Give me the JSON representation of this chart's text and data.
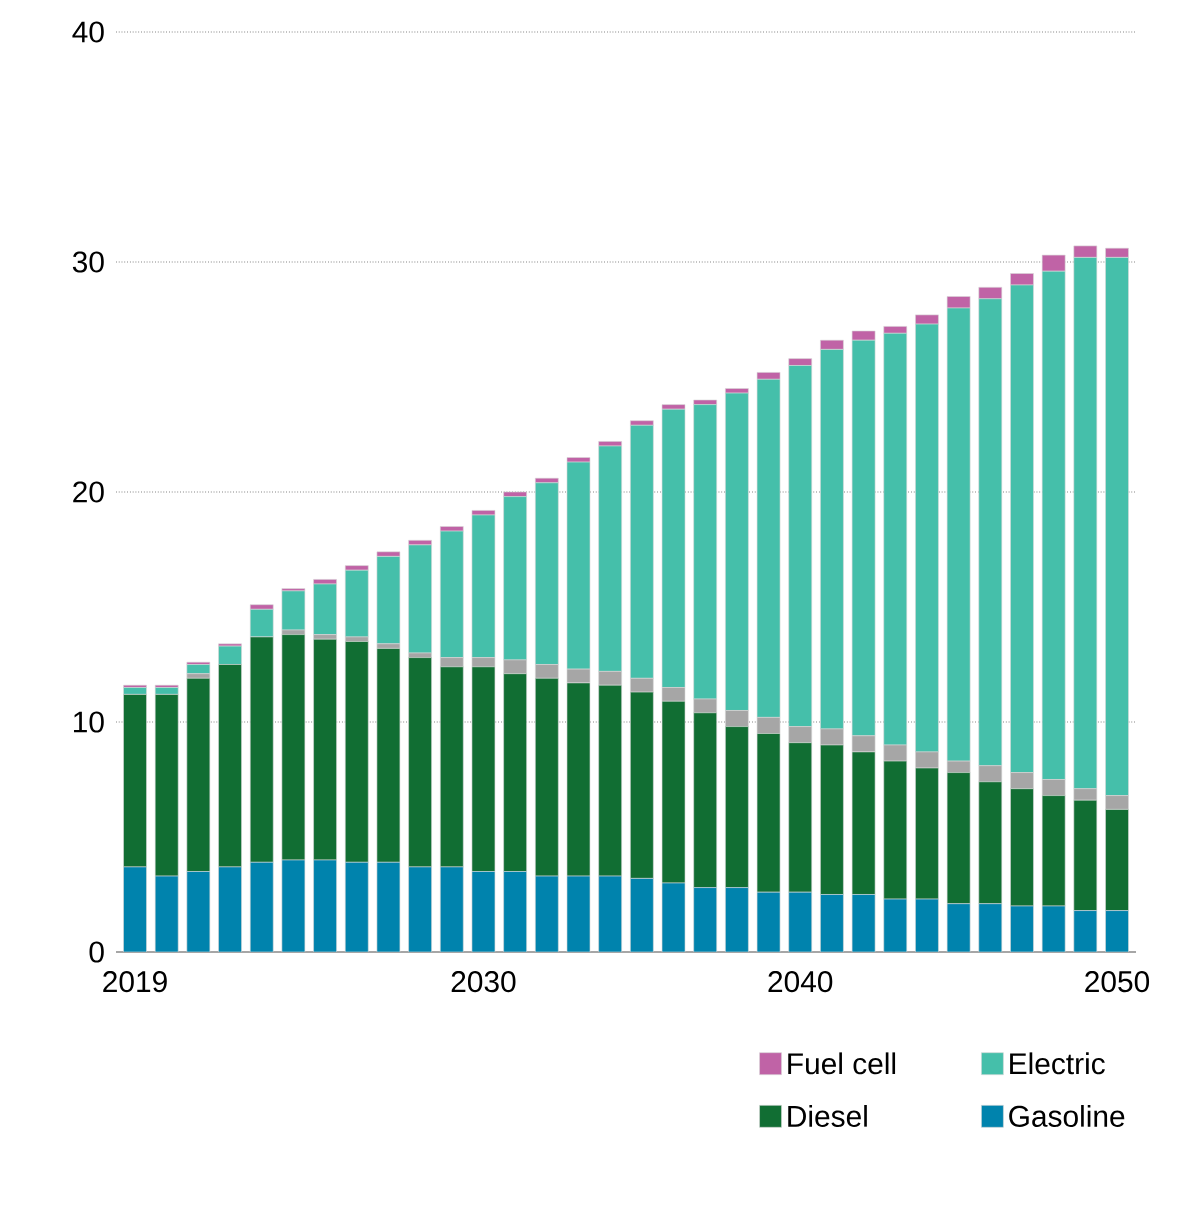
{
  "chart_data": {
    "type": "bar",
    "stacked": true,
    "categories": [
      "2019",
      null,
      null,
      null,
      null,
      null,
      null,
      null,
      null,
      null,
      null,
      "2030",
      null,
      null,
      null,
      null,
      null,
      null,
      null,
      null,
      null,
      "2040",
      null,
      null,
      null,
      null,
      null,
      null,
      null,
      null,
      null,
      "2050"
    ],
    "series": [
      {
        "name": "Gasoline",
        "color": "#0083ad",
        "values": [
          3.7,
          3.3,
          3.5,
          3.7,
          3.9,
          4.0,
          4.0,
          3.9,
          3.9,
          3.7,
          3.7,
          3.5,
          3.5,
          3.3,
          3.3,
          3.3,
          3.2,
          3.0,
          2.8,
          2.8,
          2.6,
          2.6,
          2.5,
          2.5,
          2.3,
          2.3,
          2.1,
          2.1,
          2.0,
          2.0,
          1.8,
          1.8
        ]
      },
      {
        "name": "Diesel",
        "color": "#116e33",
        "values": [
          7.5,
          7.9,
          8.4,
          8.8,
          9.8,
          9.8,
          9.6,
          9.6,
          9.3,
          9.1,
          8.7,
          8.9,
          8.6,
          8.6,
          8.4,
          8.3,
          8.1,
          7.9,
          7.6,
          7.0,
          6.9,
          6.5,
          6.5,
          6.2,
          6.0,
          5.7,
          5.7,
          5.3,
          5.1,
          4.8,
          4.8,
          4.4
        ]
      },
      {
        "color": "#a6a6a6",
        "values": [
          0,
          0,
          0.2,
          0,
          0,
          0.2,
          0.2,
          0.2,
          0.2,
          0.2,
          0.4,
          0.4,
          0.6,
          0.6,
          0.6,
          0.6,
          0.6,
          0.6,
          0.6,
          0.7,
          0.7,
          0.7,
          0.7,
          0.7,
          0.7,
          0.7,
          0.5,
          0.7,
          0.7,
          0.7,
          0.5,
          0.6
        ]
      },
      {
        "name": "Electric",
        "color": "#45bfaa",
        "values": [
          0.3,
          0.3,
          0.4,
          0.8,
          1.2,
          1.7,
          2.2,
          2.9,
          3.8,
          4.7,
          5.5,
          6.2,
          7.1,
          7.9,
          9.0,
          9.8,
          11.0,
          12.1,
          12.8,
          13.8,
          14.7,
          15.7,
          16.5,
          17.2,
          17.9,
          18.6,
          19.7,
          20.3,
          21.2,
          22.1,
          23.1,
          23.4
        ]
      },
      {
        "name": "Fuel cell",
        "color": "#c063a6",
        "values": [
          0.1,
          0.1,
          0.1,
          0.1,
          0.2,
          0.1,
          0.2,
          0.2,
          0.2,
          0.2,
          0.2,
          0.2,
          0.2,
          0.2,
          0.2,
          0.2,
          0.2,
          0.2,
          0.2,
          0.2,
          0.3,
          0.3,
          0.4,
          0.4,
          0.3,
          0.4,
          0.5,
          0.5,
          0.5,
          0.7,
          0.5,
          0.4
        ]
      }
    ],
    "ylim": [
      0,
      40
    ],
    "yticks": [
      0,
      10,
      20,
      30,
      40
    ],
    "grid": "y",
    "legend": "bottom right"
  }
}
